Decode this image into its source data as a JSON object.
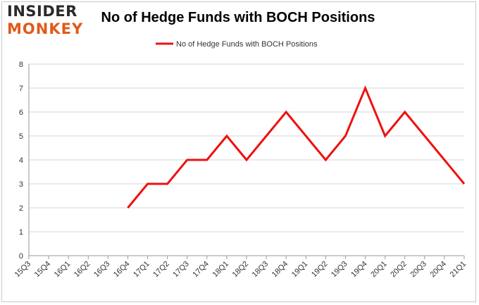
{
  "logo": {
    "line1": "INSIDER",
    "line2": "MONKEY",
    "colors": {
      "line1": "#2b2b2b",
      "line2": "#e05a1a"
    }
  },
  "chart_data": {
    "type": "line",
    "title": "No of Hedge Funds with BOCH Positions",
    "xlabel": "",
    "ylabel": "",
    "categories": [
      "15Q3",
      "15Q4",
      "16Q1",
      "16Q2",
      "16Q3",
      "16Q4",
      "17Q1",
      "17Q2",
      "17Q3",
      "17Q4",
      "18Q1",
      "18Q2",
      "18Q3",
      "18Q4",
      "19Q1",
      "19Q2",
      "19Q3",
      "19Q4",
      "20Q1",
      "20Q2",
      "20Q3",
      "20Q4",
      "21Q1"
    ],
    "series": [
      {
        "name": "No of Hedge Funds with BOCH Positions",
        "color": "#ee1111",
        "values": [
          null,
          null,
          null,
          null,
          null,
          2,
          3,
          3,
          4,
          4,
          5,
          4,
          5,
          6,
          5,
          4,
          5,
          7,
          5,
          6,
          5,
          4,
          3
        ]
      }
    ],
    "ylim": [
      0,
      8
    ],
    "yticks": [
      0,
      1,
      2,
      3,
      4,
      5,
      6,
      7,
      8
    ],
    "grid": true,
    "legend_position": "top-center"
  }
}
